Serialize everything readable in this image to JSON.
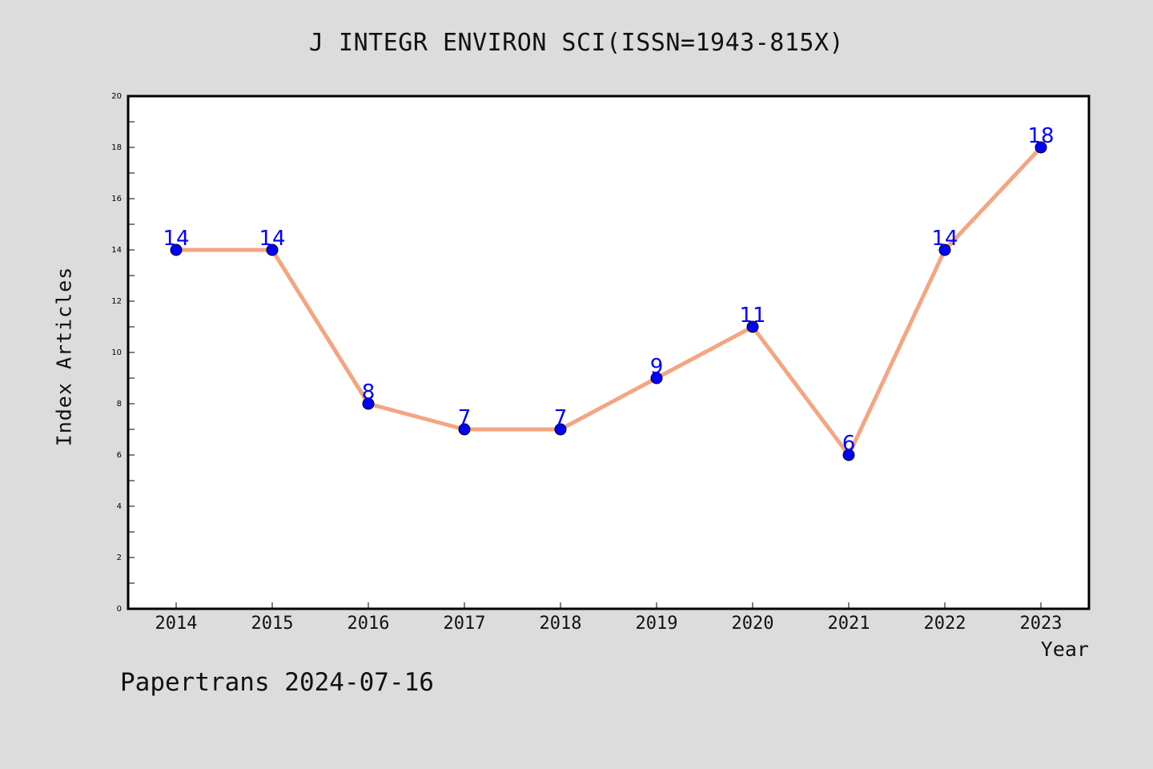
{
  "chart_data": {
    "type": "line",
    "title": "J INTEGR ENVIRON SCI(ISSN=1943-815X)",
    "xlabel": "Year",
    "ylabel": "Index Articles",
    "categories": [
      "2014",
      "2015",
      "2016",
      "2017",
      "2018",
      "2019",
      "2020",
      "2021",
      "2022",
      "2023"
    ],
    "values": [
      14,
      14,
      8,
      7,
      7,
      9,
      11,
      6,
      14,
      18
    ],
    "ylim": [
      0,
      20
    ],
    "yticks": [
      0,
      2,
      4,
      6,
      8,
      10,
      12,
      14,
      16,
      18,
      20
    ],
    "grid": false,
    "line_color": "#f4a582",
    "marker_color": "#0000ff",
    "label_color": "#0000ff"
  },
  "footer": "Papertrans 2024-07-16"
}
